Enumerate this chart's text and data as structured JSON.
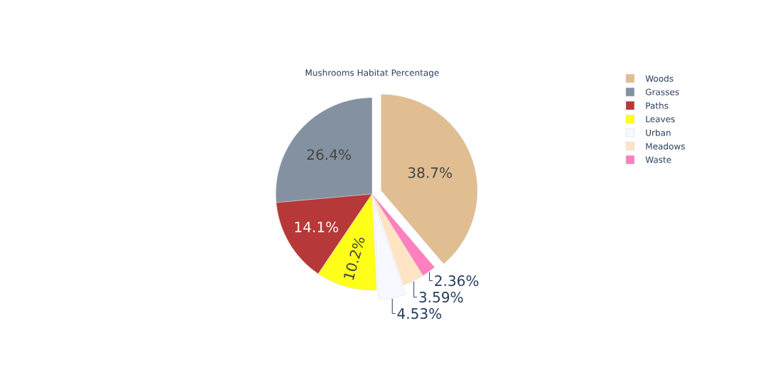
{
  "chart_data": {
    "type": "pie",
    "title": "Mushrooms Habitat Percentage",
    "categories": [
      "Woods",
      "Grasses",
      "Paths",
      "Leaves",
      "Urban",
      "Meadows",
      "Waste"
    ],
    "values": [
      38.7,
      26.4,
      14.1,
      10.2,
      4.53,
      3.59,
      2.36
    ],
    "value_labels": [
      "38.7%",
      "26.4%",
      "14.1%",
      "10.2%",
      "4.53%",
      "3.59%",
      "2.36%"
    ],
    "colors": [
      "#e0be92",
      "#8491a0",
      "#b73838",
      "#ffff1a",
      "#f8f8ff",
      "#ffe4c4",
      "#ff7fbf"
    ],
    "legend": "top right"
  }
}
